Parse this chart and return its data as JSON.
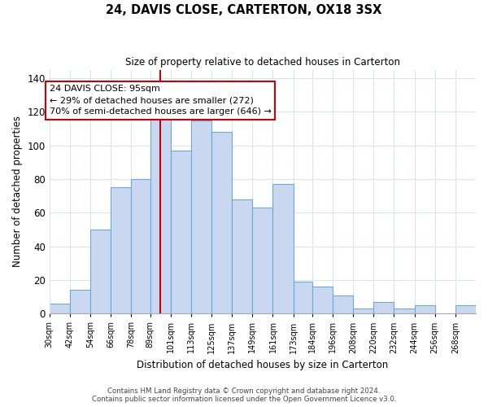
{
  "title": "24, DAVIS CLOSE, CARTERTON, OX18 3SX",
  "subtitle": "Size of property relative to detached houses in Carterton",
  "xlabel": "Distribution of detached houses by size in Carterton",
  "ylabel": "Number of detached properties",
  "footer_line1": "Contains HM Land Registry data © Crown copyright and database right 2024.",
  "footer_line2": "Contains public sector information licensed under the Open Government Licence v3.0.",
  "bar_color": "#c8d8f0",
  "bar_edge_color": "#6ea8d8",
  "vline_color": "#cc0000",
  "vline_x": 95,
  "categories": [
    "30sqm",
    "42sqm",
    "54sqm",
    "66sqm",
    "78sqm",
    "89sqm",
    "101sqm",
    "113sqm",
    "125sqm",
    "137sqm",
    "149sqm",
    "161sqm",
    "173sqm",
    "184sqm",
    "196sqm",
    "208sqm",
    "220sqm",
    "232sqm",
    "244sqm",
    "256sqm",
    "268sqm"
  ],
  "bin_edges": [
    30,
    42,
    54,
    66,
    78,
    89,
    101,
    113,
    125,
    137,
    149,
    161,
    173,
    184,
    196,
    208,
    220,
    232,
    244,
    256,
    268,
    280
  ],
  "values": [
    6,
    14,
    50,
    75,
    80,
    118,
    97,
    115,
    108,
    68,
    63,
    77,
    19,
    16,
    11,
    3,
    7,
    3,
    5,
    0,
    5
  ],
  "ylim": [
    0,
    145
  ],
  "yticks": [
    0,
    20,
    40,
    60,
    80,
    100,
    120,
    140
  ],
  "annotation_text": "24 DAVIS CLOSE: 95sqm\n← 29% of detached houses are smaller (272)\n70% of semi-detached houses are larger (646) →",
  "annotation_box_color": "#ffffff",
  "annotation_box_edge_color": "#cc0000",
  "background_color": "#ffffff",
  "grid_color": "#d8e4f0"
}
